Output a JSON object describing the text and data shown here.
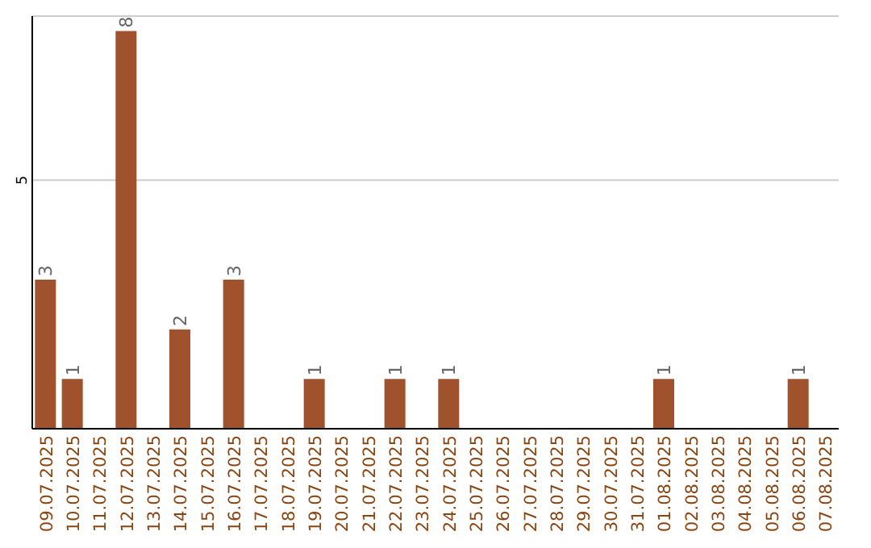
{
  "chart_data": {
    "type": "bar",
    "categories": [
      "09.07.2025",
      "10.07.2025",
      "11.07.2025",
      "12.07.2025",
      "13.07.2025",
      "14.07.2025",
      "15.07.2025",
      "16.07.2025",
      "17.07.2025",
      "18.07.2025",
      "19.07.2025",
      "20.07.2025",
      "21.07.2025",
      "22.07.2025",
      "23.07.2025",
      "24.07.2025",
      "25.07.2025",
      "26.07.2025",
      "27.07.2025",
      "28.07.2025",
      "29.07.2025",
      "30.07.2025",
      "31.07.2025",
      "01.08.2025",
      "02.08.2025",
      "03.08.2025",
      "04.08.2025",
      "05.08.2025",
      "06.08.2025",
      "07.08.2025"
    ],
    "values": [
      3,
      1,
      0,
      8,
      0,
      2,
      0,
      3,
      0,
      0,
      1,
      0,
      0,
      1,
      0,
      1,
      0,
      0,
      0,
      0,
      0,
      0,
      0,
      1,
      0,
      0,
      0,
      0,
      1,
      0
    ],
    "value_labels": [
      "3",
      "1",
      null,
      "8",
      null,
      "2",
      null,
      "3",
      null,
      null,
      "1",
      null,
      null,
      "1",
      null,
      "1",
      null,
      null,
      null,
      null,
      null,
      null,
      null,
      "1",
      null,
      null,
      null,
      null,
      "1",
      null
    ],
    "color": "#a0522d",
    "ylim": [
      0,
      8.3
    ],
    "yticks": [
      5
    ],
    "grid": "y"
  }
}
